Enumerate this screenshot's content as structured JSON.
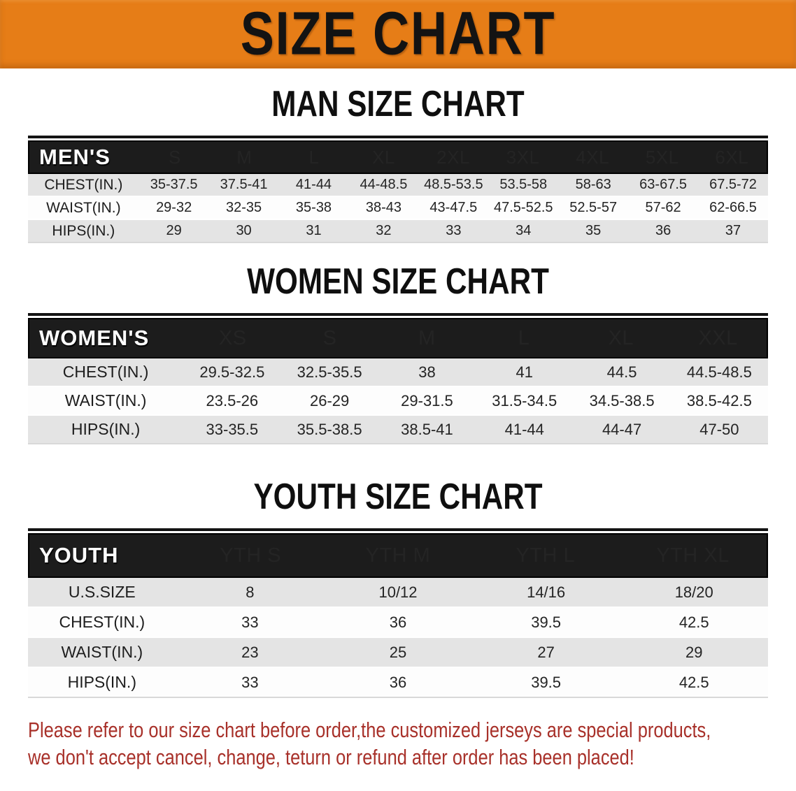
{
  "banner": {
    "title": "SIZE CHART",
    "bg": "#e67d17",
    "text_color": "#131313"
  },
  "colors": {
    "header_bar": "#1c1c1c",
    "gray_row": "#e4e4e4",
    "white_row": "#fdfdfd",
    "footer_red": "#a8312a"
  },
  "sections": [
    {
      "heading": "MAN SIZE CHART",
      "table": {
        "header": [
          "MEN'S",
          "S",
          "M",
          "L",
          "XL",
          "2XL",
          "3XL",
          "4XL",
          "5XL",
          "6XL"
        ],
        "rows": [
          {
            "label": "CHEST(IN.)",
            "shade": "gray",
            "values": [
              "35-37.5",
              "37.5-41",
              "41-44",
              "44-48.5",
              "48.5-53.5",
              "53.5-58",
              "58-63",
              "63-67.5",
              "67.5-72"
            ]
          },
          {
            "label": "WAIST(IN.)",
            "shade": "white",
            "values": [
              "29-32",
              "32-35",
              "35-38",
              "38-43",
              "43-47.5",
              "47.5-52.5",
              "52.5-57",
              "57-62",
              "62-66.5"
            ]
          },
          {
            "label": "HIPS(IN.)",
            "shade": "gray",
            "values": [
              "29",
              "30",
              "31",
              "32",
              "33",
              "34",
              "35",
              "36",
              "37"
            ]
          }
        ]
      }
    },
    {
      "heading": "WOMEN SIZE CHART",
      "table": {
        "header": [
          "WOMEN'S",
          "XS",
          "S",
          "M",
          "L",
          "XL",
          "XXL"
        ],
        "rows": [
          {
            "label": "CHEST(IN.)",
            "shade": "gray",
            "values": [
              "29.5-32.5",
              "32.5-35.5",
              "38",
              "41",
              "44.5",
              "44.5-48.5"
            ]
          },
          {
            "label": "WAIST(IN.)",
            "shade": "white",
            "values": [
              "23.5-26",
              "26-29",
              "29-31.5",
              "31.5-34.5",
              "34.5-38.5",
              "38.5-42.5"
            ]
          },
          {
            "label": "HIPS(IN.)",
            "shade": "gray",
            "values": [
              "33-35.5",
              "35.5-38.5",
              "38.5-41",
              "41-44",
              "44-47",
              "47-50"
            ]
          }
        ]
      }
    },
    {
      "heading": "YOUTH SIZE CHART",
      "table": {
        "header": [
          "YOUTH",
          "YTH S",
          "YTH M",
          "YTH L",
          "YTH XL"
        ],
        "rows": [
          {
            "label": "U.S.SIZE",
            "shade": "gray",
            "values": [
              "8",
              "10/12",
              "14/16",
              "18/20"
            ]
          },
          {
            "label": "CHEST(IN.)",
            "shade": "white",
            "values": [
              "33",
              "36",
              "39.5",
              "42.5"
            ]
          },
          {
            "label": "WAIST(IN.)",
            "shade": "gray",
            "values": [
              "23",
              "25",
              "27",
              "29"
            ]
          },
          {
            "label": "HIPS(IN.)",
            "shade": "white",
            "values": [
              "33",
              "36",
              "39.5",
              "42.5"
            ]
          }
        ]
      }
    }
  ],
  "footer": {
    "line1": "Please refer to our size chart before order,the customized jerseys are special products,",
    "line2": "we don't accept cancel, change, teturn or refund after order has been placed!"
  }
}
